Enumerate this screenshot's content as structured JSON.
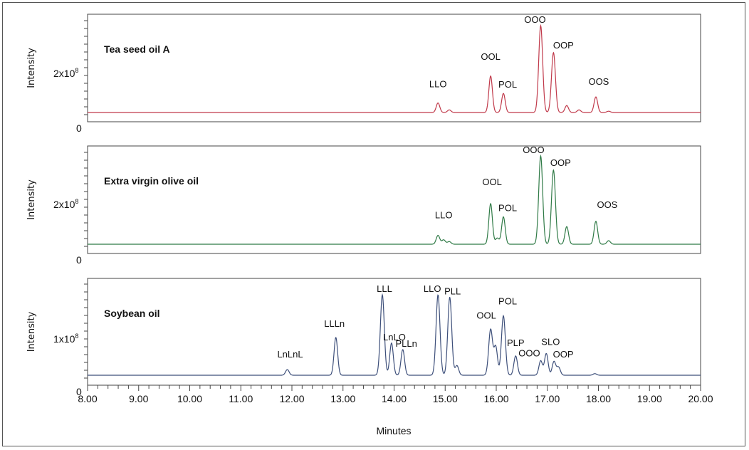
{
  "chart_data": [
    {
      "type": "line",
      "title": "Tea seed oil A",
      "ylabel": "Intensity",
      "ytick_labels": [
        "0",
        "2x10",
        "8"
      ],
      "xlim": [
        8.0,
        20.0
      ],
      "color": "#c0394a",
      "peaks": [
        {
          "label": "LLO",
          "x": 14.86,
          "y": 0.11
        },
        {
          "label": "OOL",
          "x": 15.89,
          "y": 0.42
        },
        {
          "label": "POL",
          "x": 16.14,
          "y": 0.22
        },
        {
          "label": "OOO",
          "x": 16.87,
          "y": 1.0
        },
        {
          "label": "OOP",
          "x": 17.12,
          "y": 0.69
        },
        {
          "label": "OOS",
          "x": 17.95,
          "y": 0.18
        }
      ],
      "minor_peaks": [
        {
          "x": 15.08,
          "y": 0.03
        },
        {
          "x": 17.38,
          "y": 0.08
        },
        {
          "x": 17.62,
          "y": 0.03
        },
        {
          "x": 18.2,
          "y": 0.015
        }
      ]
    },
    {
      "type": "line",
      "title": "Extra virgin olive oil",
      "ylabel": "Intensity",
      "ytick_labels": [
        "0",
        "2x10",
        "8"
      ],
      "xlim": [
        8.0,
        20.0
      ],
      "color": "#2f7a46",
      "peaks": [
        {
          "label": "LLO",
          "x": 14.86,
          "y": 0.1
        },
        {
          "label": "OOL",
          "x": 15.89,
          "y": 0.46
        },
        {
          "label": "POL",
          "x": 16.14,
          "y": 0.31
        },
        {
          "label": "OOO",
          "x": 16.87,
          "y": 1.0
        },
        {
          "label": "OOP",
          "x": 17.12,
          "y": 0.84
        },
        {
          "label": "OOS",
          "x": 17.95,
          "y": 0.26
        }
      ],
      "minor_peaks": [
        {
          "x": 14.97,
          "y": 0.05
        },
        {
          "x": 15.08,
          "y": 0.03
        },
        {
          "x": 16.02,
          "y": 0.07
        },
        {
          "x": 17.38,
          "y": 0.2
        },
        {
          "x": 18.2,
          "y": 0.04
        }
      ]
    },
    {
      "type": "line",
      "title": "Soybean oil",
      "ylabel": "Intensity",
      "ytick_labels": [
        "0",
        "1x10",
        "8"
      ],
      "xlim": [
        8.0,
        20.0
      ],
      "xlabel": "Minutes",
      "x_tick_labels": [
        "8.00",
        "9.00",
        "10.00",
        "11.00",
        "12.00",
        "13.00",
        "14.00",
        "15.00",
        "16.00",
        "17.00",
        "18.00",
        "19.00",
        "20.00"
      ],
      "color": "#3d4f7a",
      "peaks": [
        {
          "label": "LnLnL",
          "x": 11.91,
          "y": 0.07
        },
        {
          "label": "LLLn",
          "x": 12.86,
          "y": 0.47
        },
        {
          "label": "LLL",
          "x": 13.77,
          "y": 1.0
        },
        {
          "label": "LnLO",
          "x": 13.95,
          "y": 0.4
        },
        {
          "label": "PLLn",
          "x": 14.17,
          "y": 0.32
        },
        {
          "label": "LLO",
          "x": 14.86,
          "y": 1.0
        },
        {
          "label": "PLL",
          "x": 15.09,
          "y": 0.97
        },
        {
          "label": "OOL",
          "x": 15.89,
          "y": 0.57
        },
        {
          "label": "POL",
          "x": 16.14,
          "y": 0.74
        },
        {
          "label": "PLP",
          "x": 16.38,
          "y": 0.24
        },
        {
          "label": "OOO",
          "x": 16.87,
          "y": 0.18
        },
        {
          "label": "SLO",
          "x": 16.98,
          "y": 0.27
        },
        {
          "label": "OOP",
          "x": 17.13,
          "y": 0.17
        }
      ],
      "minor_peaks": [
        {
          "x": 15.99,
          "y": 0.35
        },
        {
          "x": 15.23,
          "y": 0.12
        },
        {
          "x": 17.22,
          "y": 0.1
        },
        {
          "x": 17.93,
          "y": 0.02
        }
      ]
    }
  ]
}
